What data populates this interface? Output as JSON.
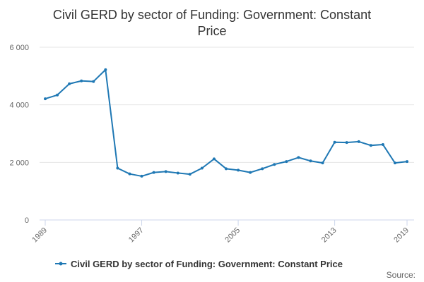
{
  "colors": {
    "series": "#1f78b4",
    "grid": "#e6e6e6",
    "axis": "#ccd6eb",
    "text": "#333333",
    "tick_text": "#666666"
  },
  "chart_data": {
    "type": "line",
    "title": "Civil GERD by sector of Funding: Government: Constant Price",
    "title_lines": [
      "Civil GERD by sector of Funding: Government: Constant",
      "Price"
    ],
    "xlabel": "",
    "ylabel": "",
    "xlim": [
      1989,
      2019
    ],
    "ylim": [
      0,
      6000
    ],
    "x_ticks": [
      1989,
      1997,
      2005,
      2013,
      2019
    ],
    "y_ticks": [
      0,
      2000,
      4000,
      6000
    ],
    "y_tick_labels": [
      "0",
      "2 000",
      "4 000",
      "6 000"
    ],
    "grid": true,
    "legend_position": "bottom",
    "credits": "Source:",
    "series": [
      {
        "name": "Civil GERD by sector of Funding: Government: Constant Price",
        "x": [
          1989,
          1990,
          1991,
          1992,
          1993,
          1994,
          1995,
          1996,
          1997,
          1998,
          1999,
          2000,
          2001,
          2002,
          2003,
          2004,
          2005,
          2006,
          2007,
          2008,
          2009,
          2010,
          2011,
          2012,
          2013,
          2014,
          2015,
          2016,
          2017,
          2018,
          2019
        ],
        "values": [
          4210,
          4340,
          4730,
          4830,
          4810,
          5220,
          1800,
          1600,
          1520,
          1650,
          1680,
          1630,
          1590,
          1800,
          2120,
          1780,
          1730,
          1650,
          1780,
          1930,
          2030,
          2170,
          2050,
          1980,
          2700,
          2690,
          2720,
          2590,
          2620,
          1980,
          2030
        ]
      }
    ]
  }
}
